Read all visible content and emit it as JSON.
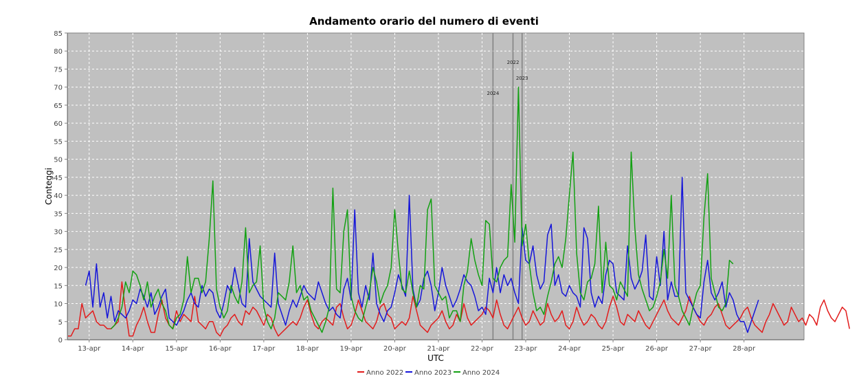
{
  "chart_data": {
    "type": "line",
    "title": "Andamento orario del numero di eventi",
    "xlabel": "UTC",
    "ylabel": "Conteggi",
    "ylim": [
      0,
      85
    ],
    "yticks": [
      0,
      5,
      10,
      15,
      20,
      25,
      30,
      35,
      40,
      45,
      50,
      55,
      60,
      65,
      70,
      75,
      80,
      85
    ],
    "xlim": [
      "2024-04-12T12:00",
      "2024-04-29T09:00"
    ],
    "xticks": [
      "13-apr",
      "14-apr",
      "15-apr",
      "16-apr",
      "17-apr",
      "18-apr",
      "19-apr",
      "20-apr",
      "21-apr",
      "22-apr",
      "23-apr",
      "24-apr",
      "25-apr",
      "26-apr",
      "27-apr",
      "28-apr"
    ],
    "grid": true,
    "legend_position": "bottom",
    "background_color": "#c0c0c0",
    "markers": [
      {
        "label": "2024",
        "x": "2024-04-22T06:00",
        "color": "#808080"
      },
      {
        "label": "2022",
        "x": "2024-04-22T17:00",
        "color": "#808080"
      },
      {
        "label": "2023",
        "x": "2024-04-22T22:00",
        "color": "#808080"
      }
    ],
    "series": [
      {
        "name": "Anno 2022",
        "color": "#e21b1b",
        "start": "2024-04-12T12:00",
        "step_hours": 2,
        "values": [
          1,
          1,
          3,
          3,
          10,
          6,
          7,
          8,
          5,
          4,
          4,
          3,
          3,
          4,
          5,
          16,
          8,
          1,
          1,
          4,
          6,
          9,
          5,
          2,
          2,
          7,
          11,
          6,
          4,
          3,
          8,
          5,
          7,
          6,
          5,
          12,
          5,
          4,
          3,
          5,
          5,
          2,
          1,
          3,
          4,
          6,
          7,
          5,
          4,
          8,
          7,
          9,
          8,
          6,
          4,
          7,
          6,
          3,
          1,
          2,
          3,
          4,
          5,
          4,
          6,
          9,
          11,
          7,
          4,
          3,
          5,
          6,
          5,
          4,
          9,
          10,
          6,
          3,
          4,
          7,
          11,
          8,
          5,
          4,
          3,
          5,
          9,
          10,
          7,
          6,
          3,
          4,
          5,
          4,
          6,
          12,
          8,
          4,
          3,
          2,
          4,
          5,
          6,
          8,
          5,
          3,
          4,
          7,
          5,
          10,
          6,
          4,
          5,
          6,
          7,
          9,
          8,
          6,
          11,
          7,
          4,
          3,
          5,
          7,
          9,
          6,
          4,
          5,
          8,
          6,
          4,
          5,
          10,
          7,
          5,
          6,
          8,
          4,
          3,
          5,
          9,
          6,
          4,
          5,
          7,
          6,
          4,
          3,
          5,
          9,
          12,
          9,
          5,
          4,
          7,
          6,
          5,
          8,
          6,
          4,
          3,
          5,
          7,
          9,
          11,
          8,
          6,
          5,
          4,
          6,
          8,
          12,
          9,
          7,
          5,
          4,
          6,
          7,
          9,
          10,
          7,
          4,
          3,
          4,
          5,
          6,
          8,
          9,
          6,
          4,
          3,
          2,
          5,
          7,
          10,
          8,
          6,
          4,
          5,
          9,
          7,
          5,
          6,
          4,
          7,
          6,
          4,
          9,
          11,
          8,
          6,
          5,
          7,
          9,
          8,
          3
        ]
      },
      {
        "name": "Anno 2023",
        "color": "#1515d9",
        "start": "2024-04-12T22:00",
        "step_hours": 2,
        "values": [
          15,
          19,
          9,
          21,
          9,
          13,
          6,
          12,
          5,
          8,
          7,
          6,
          8,
          11,
          10,
          14,
          12,
          9,
          13,
          7,
          9,
          12,
          14,
          6,
          5,
          4,
          6,
          8,
          11,
          13,
          10,
          9,
          15,
          12,
          14,
          13,
          8,
          6,
          10,
          15,
          13,
          20,
          15,
          10,
          9,
          28,
          16,
          14,
          12,
          11,
          10,
          9,
          24,
          10,
          7,
          4,
          8,
          11,
          9,
          12,
          15,
          13,
          12,
          11,
          16,
          13,
          10,
          8,
          9,
          7,
          6,
          14,
          17,
          11,
          36,
          13,
          9,
          15,
          11,
          24,
          10,
          7,
          5,
          8,
          9,
          13,
          18,
          15,
          12,
          40,
          14,
          9,
          11,
          17,
          19,
          15,
          8,
          13,
          20,
          15,
          12,
          9,
          11,
          14,
          18,
          16,
          15,
          12,
          8,
          9,
          7,
          17,
          13,
          20,
          13,
          18,
          15,
          17,
          13,
          10,
          31,
          22,
          21,
          26,
          18,
          14,
          16,
          29,
          32,
          15,
          18,
          13,
          12,
          15,
          13,
          12,
          9,
          31,
          28,
          13,
          9,
          12,
          10,
          18,
          22,
          21,
          13,
          12,
          11,
          26,
          17,
          14,
          16,
          19,
          29,
          12,
          11,
          23,
          15,
          30,
          11,
          16,
          12,
          12,
          45,
          13,
          11,
          9,
          7,
          6,
          16,
          22,
          13,
          11,
          13,
          16,
          9,
          13,
          11,
          7,
          5,
          5,
          2,
          5,
          8,
          11
        ]
      },
      {
        "name": "Anno 2024",
        "color": "#12a012",
        "start": "2024-04-13T12:00",
        "step_hours": 2,
        "values": [
          3,
          4,
          6,
          9,
          16,
          13,
          19,
          18,
          15,
          11,
          16,
          9,
          12,
          14,
          10,
          8,
          4,
          3,
          6,
          7,
          11,
          23,
          13,
          17,
          17,
          13,
          16,
          28,
          44,
          14,
          9,
          6,
          8,
          15,
          12,
          10,
          16,
          31,
          13,
          15,
          16,
          26,
          9,
          5,
          3,
          6,
          13,
          12,
          11,
          16,
          26,
          13,
          15,
          11,
          12,
          8,
          6,
          4,
          2,
          5,
          9,
          42,
          14,
          13,
          30,
          36,
          12,
          8,
          6,
          5,
          9,
          13,
          20,
          16,
          10,
          13,
          15,
          20,
          36,
          24,
          14,
          13,
          19,
          13,
          9,
          15,
          14,
          36,
          39,
          15,
          13,
          11,
          12,
          6,
          8,
          8,
          5,
          15,
          19,
          28,
          22,
          18,
          15,
          33,
          32,
          17,
          16,
          20,
          22,
          23,
          43,
          27,
          70,
          26,
          32,
          21,
          13,
          8,
          9,
          7,
          12,
          16,
          21,
          23,
          20,
          28,
          40,
          52,
          24,
          13,
          11,
          16,
          17,
          21,
          37,
          13,
          27,
          15,
          14,
          11,
          16,
          14,
          12,
          52,
          31,
          18,
          14,
          11,
          8,
          9,
          12,
          16,
          25,
          17,
          40,
          15,
          12,
          8,
          6,
          4,
          9,
          13,
          15,
          34,
          46,
          17,
          13,
          9,
          8,
          10,
          22,
          21
        ]
      }
    ]
  }
}
